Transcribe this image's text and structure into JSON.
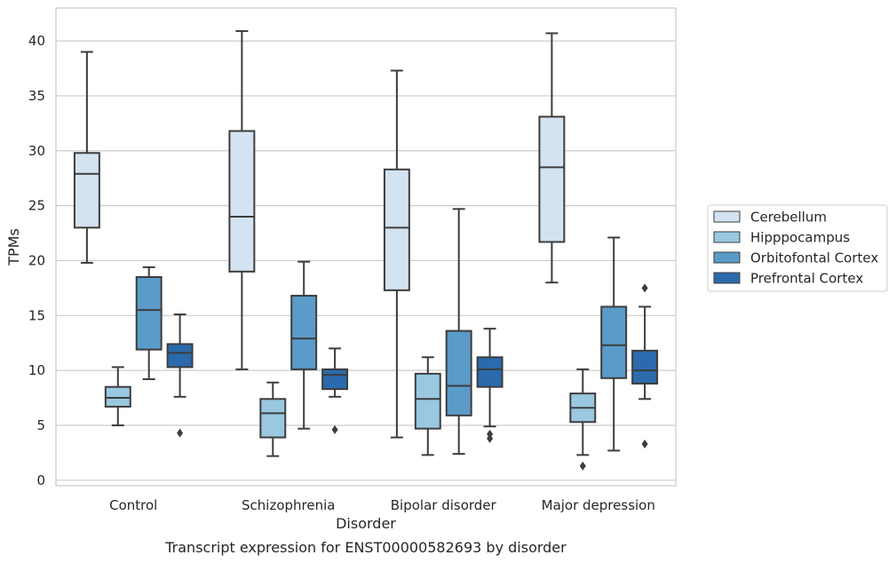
{
  "chart_data": {
    "type": "box",
    "title": "",
    "caption": "Transcript expression for ENST00000582693 by disorder",
    "xlabel": "Disorder",
    "ylabel": "TPMs",
    "ylim": [
      -0.5,
      43
    ],
    "yticks": [
      0,
      5,
      10,
      15,
      20,
      25,
      30,
      35,
      40
    ],
    "grid": true,
    "legend_position": "right",
    "categories": [
      "Control",
      "Schizophrenia",
      "Bipolar disorder",
      "Major depression"
    ],
    "series": [
      {
        "name": "Cerebellum",
        "color": "#d4e3f1",
        "boxes": [
          {
            "whislo": 19.8,
            "q1": 23.0,
            "med": 27.9,
            "q3": 29.8,
            "whishi": 39.0,
            "fliers": []
          },
          {
            "whislo": 10.1,
            "q1": 19.0,
            "med": 24.0,
            "q3": 31.8,
            "whishi": 40.9,
            "fliers": []
          },
          {
            "whislo": 3.9,
            "q1": 17.3,
            "med": 23.0,
            "q3": 28.3,
            "whishi": 37.3,
            "fliers": []
          },
          {
            "whislo": 18.0,
            "q1": 21.7,
            "med": 28.5,
            "q3": 33.1,
            "whishi": 40.7,
            "fliers": []
          }
        ]
      },
      {
        "name": "Hipppocampus",
        "color": "#9ac8e0",
        "boxes": [
          {
            "whislo": 5.0,
            "q1": 6.7,
            "med": 7.5,
            "q3": 8.5,
            "whishi": 10.3,
            "fliers": []
          },
          {
            "whislo": 2.2,
            "q1": 3.9,
            "med": 6.1,
            "q3": 7.4,
            "whishi": 8.9,
            "fliers": []
          },
          {
            "whislo": 2.3,
            "q1": 4.7,
            "med": 7.4,
            "q3": 9.7,
            "whishi": 11.2,
            "fliers": []
          },
          {
            "whislo": 2.3,
            "q1": 5.3,
            "med": 6.6,
            "q3": 7.9,
            "whishi": 10.1,
            "fliers": [
              1.3
            ]
          }
        ]
      },
      {
        "name": "Orbitofontal Cortex",
        "color": "#5a9bc9",
        "boxes": [
          {
            "whislo": 9.2,
            "q1": 11.9,
            "med": 15.5,
            "q3": 18.5,
            "whishi": 19.4,
            "fliers": []
          },
          {
            "whislo": 4.7,
            "q1": 10.1,
            "med": 12.9,
            "q3": 16.8,
            "whishi": 19.9,
            "fliers": []
          },
          {
            "whislo": 2.4,
            "q1": 5.9,
            "med": 8.6,
            "q3": 13.6,
            "whishi": 24.7,
            "fliers": []
          },
          {
            "whislo": 2.7,
            "q1": 9.3,
            "med": 12.3,
            "q3": 15.8,
            "whishi": 22.1,
            "fliers": []
          }
        ]
      },
      {
        "name": "Prefrontal Cortex",
        "color": "#2b6aac",
        "boxes": [
          {
            "whislo": 7.6,
            "q1": 10.3,
            "med": 11.6,
            "q3": 12.4,
            "whishi": 15.1,
            "fliers": [
              4.3
            ]
          },
          {
            "whislo": 7.6,
            "q1": 8.3,
            "med": 9.6,
            "q3": 10.1,
            "whishi": 12.0,
            "fliers": [
              4.6
            ]
          },
          {
            "whislo": 4.9,
            "q1": 8.5,
            "med": 10.1,
            "q3": 11.2,
            "whishi": 13.8,
            "fliers": [
              4.2,
              3.8
            ]
          },
          {
            "whislo": 7.4,
            "q1": 8.8,
            "med": 10.0,
            "q3": 11.8,
            "whishi": 15.8,
            "fliers": [
              17.5,
              3.3
            ]
          }
        ]
      }
    ]
  }
}
